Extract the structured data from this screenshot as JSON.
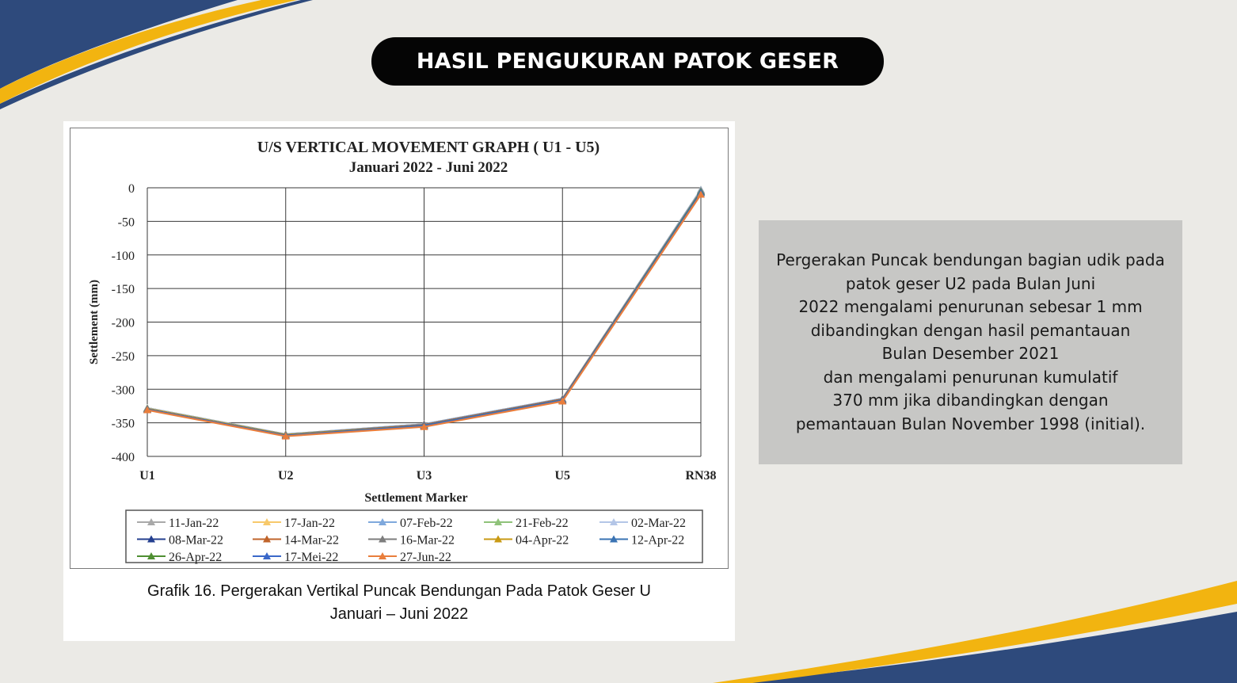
{
  "slide": {
    "title": "HASIL PENGUKURAN PATOK GESER",
    "caption_line1": "Grafik 16. Pergerakan Vertikal Puncak Bendungan Pada Patok Geser U",
    "caption_line2": "Januari – Juni 2022"
  },
  "info": {
    "lines": [
      "Pergerakan Puncak bendungan bagian udik pada",
      "patok geser U2 pada Bulan Juni",
      "2022 mengalami penurunan sebesar 1 mm",
      "dibandingkan dengan hasil pemantauan",
      "Bulan Desember 2021",
      "dan mengalami penurunan kumulatif",
      "370 mm jika dibandingkan dengan",
      "pemantauan Bulan November 1998 (initial)."
    ]
  },
  "colors": {
    "navy": "#2e4a7c",
    "gold": "#f2b410",
    "pill": "#050505",
    "info_bg": "#c7c7c5"
  },
  "chart_data": {
    "type": "line",
    "title": "U/S VERTICAL MOVEMENT GRAPH ( U1 - U5)",
    "subtitle": "Januari 2022 - Juni 2022",
    "xlabel": "Settlement Marker",
    "ylabel": "Settlement (mm)",
    "categories": [
      "U1",
      "U2",
      "U3",
      "U5",
      "RN38"
    ],
    "ylim": [
      -400,
      0
    ],
    "yticks": [
      0,
      -50,
      -100,
      -150,
      -200,
      -250,
      -300,
      -350,
      -400
    ],
    "grid": true,
    "legend_position": "bottom",
    "series": [
      {
        "name": "11-Jan-22",
        "color": "#a9a9a9",
        "values": [
          -328,
          -367,
          -352,
          -314,
          -3
        ]
      },
      {
        "name": "17-Jan-22",
        "color": "#f7c96b",
        "values": [
          -328,
          -367,
          -352,
          -314,
          -3
        ]
      },
      {
        "name": "07-Feb-22",
        "color": "#7fa8dc",
        "values": [
          -328,
          -367,
          -352,
          -314,
          -3
        ]
      },
      {
        "name": "21-Feb-22",
        "color": "#8fc27a",
        "values": [
          -328,
          -368,
          -353,
          -315,
          -4
        ]
      },
      {
        "name": "02-Mar-22",
        "color": "#b4c6e7",
        "values": [
          -328,
          -368,
          -353,
          -315,
          -4
        ]
      },
      {
        "name": "08-Mar-22",
        "color": "#243f8f",
        "values": [
          -329,
          -368,
          -353,
          -315,
          -5
        ]
      },
      {
        "name": "14-Mar-22",
        "color": "#c0642b",
        "values": [
          -329,
          -368,
          -353,
          -315,
          -5
        ]
      },
      {
        "name": "16-Mar-22",
        "color": "#7d7d7d",
        "values": [
          -329,
          -368,
          -354,
          -316,
          -5
        ]
      },
      {
        "name": "04-Apr-22",
        "color": "#c99a14",
        "values": [
          -329,
          -368,
          -354,
          -316,
          -6
        ]
      },
      {
        "name": "12-Apr-22",
        "color": "#3a73b3",
        "values": [
          -330,
          -369,
          -354,
          -316,
          -6
        ]
      },
      {
        "name": "26-Apr-22",
        "color": "#4f8f32",
        "values": [
          -330,
          -369,
          -355,
          -317,
          -7
        ]
      },
      {
        "name": "17-Mei-22",
        "color": "#3a68c9",
        "values": [
          -330,
          -369,
          -355,
          -317,
          -8
        ]
      },
      {
        "name": "27-Jun-22",
        "color": "#e97e3c",
        "values": [
          -331,
          -370,
          -356,
          -318,
          -10
        ]
      }
    ]
  }
}
